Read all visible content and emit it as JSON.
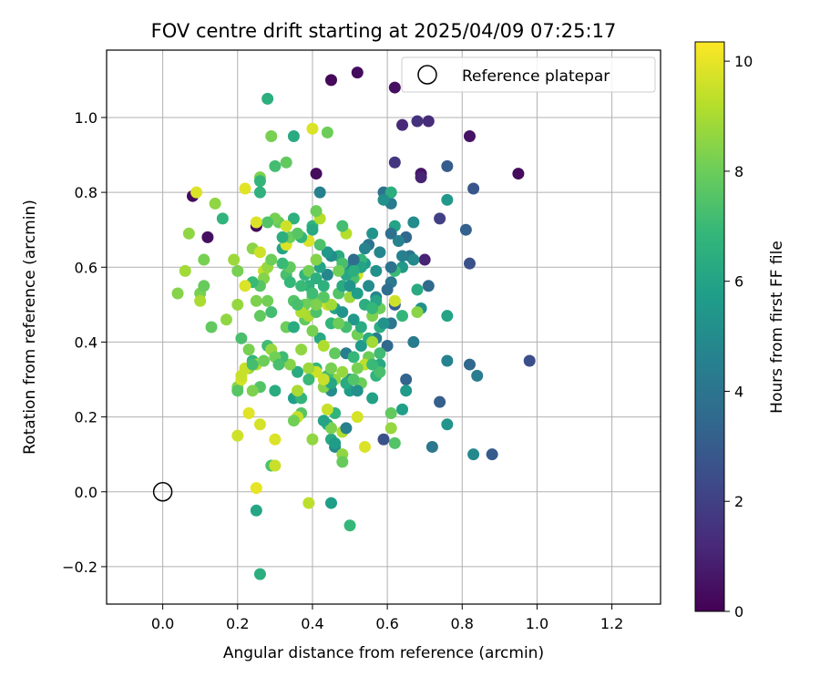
{
  "chart_data": {
    "type": "scatter",
    "title": "FOV centre drift starting at 2025/04/09 07:25:17",
    "xlabel": "Angular distance from reference (arcmin)",
    "ylabel": "Rotation from reference (arcmin)",
    "xlim": [
      -0.15,
      1.33
    ],
    "ylim": [
      -0.3,
      1.18
    ],
    "xticks": [
      0.0,
      0.2,
      0.4,
      0.6,
      0.8,
      1.0,
      1.2
    ],
    "xtick_labels": [
      "0.0",
      "0.2",
      "0.4",
      "0.6",
      "0.8",
      "1.0",
      "1.2"
    ],
    "yticks": [
      -0.2,
      0.0,
      0.2,
      0.4,
      0.6,
      0.8,
      1.0
    ],
    "ytick_labels": [
      "−0.2",
      "0.0",
      "0.2",
      "0.4",
      "0.6",
      "0.8",
      "1.0"
    ],
    "grid": true,
    "legend": {
      "position": "top-right",
      "entries": [
        "Reference platepar"
      ]
    },
    "reference_point": {
      "x": 0.0,
      "y": 0.0,
      "label": "Reference platepar"
    },
    "colorbar": {
      "label": "Hours from first FF file",
      "colormap": "viridis",
      "range": [
        0,
        10.35
      ],
      "ticks": [
        0,
        2,
        4,
        6,
        8,
        10
      ],
      "tick_labels": [
        "0",
        "2",
        "4",
        "6",
        "8",
        "10"
      ]
    },
    "colormap_stops": [
      "#440154",
      "#482878",
      "#3e4989",
      "#31688e",
      "#26828e",
      "#1f9e89",
      "#35b779",
      "#6ece58",
      "#b5de2b",
      "#fde725"
    ],
    "points": [
      [
        0.45,
        1.1,
        0.2
      ],
      [
        0.52,
        1.12,
        0.3
      ],
      [
        0.62,
        1.08,
        0.4
      ],
      [
        0.64,
        0.98,
        1.2
      ],
      [
        0.68,
        0.99,
        1.5
      ],
      [
        0.71,
        0.99,
        1.3
      ],
      [
        0.82,
        0.95,
        0.5
      ],
      [
        0.95,
        0.85,
        0.3
      ],
      [
        0.69,
        0.85,
        0.6
      ],
      [
        0.62,
        0.88,
        1.6
      ],
      [
        0.69,
        0.84,
        1.0
      ],
      [
        0.76,
        0.87,
        3.0
      ],
      [
        0.83,
        0.81,
        2.8
      ],
      [
        0.41,
        0.85,
        0.3
      ],
      [
        0.08,
        0.79,
        0.3
      ],
      [
        0.12,
        0.68,
        0.4
      ],
      [
        0.25,
        0.71,
        0.3
      ],
      [
        0.7,
        0.62,
        1.0
      ],
      [
        0.74,
        0.73,
        2.0
      ],
      [
        0.81,
        0.7,
        3.2
      ],
      [
        0.82,
        0.61,
        2.6
      ],
      [
        0.98,
        0.35,
        2.5
      ],
      [
        0.88,
        0.1,
        3.0
      ],
      [
        0.83,
        0.1,
        4.9
      ],
      [
        0.82,
        0.34,
        3.5
      ],
      [
        0.84,
        0.31,
        4.4
      ],
      [
        0.74,
        0.24,
        3.1
      ],
      [
        0.72,
        0.12,
        4.1
      ],
      [
        0.76,
        0.35,
        4.6
      ],
      [
        0.76,
        0.47,
        6.0
      ],
      [
        0.76,
        0.18,
        5.4
      ],
      [
        0.76,
        0.78,
        5.5
      ],
      [
        0.71,
        0.55,
        3.6
      ],
      [
        0.67,
        0.4,
        4.3
      ],
      [
        0.69,
        0.49,
        5.2
      ],
      [
        0.66,
        0.63,
        4.0
      ],
      [
        0.65,
        0.68,
        3.4
      ],
      [
        0.67,
        0.72,
        5.0
      ],
      [
        0.61,
        0.77,
        4.3
      ],
      [
        0.59,
        0.8,
        3.9
      ],
      [
        0.61,
        0.8,
        6.5
      ],
      [
        0.59,
        0.78,
        5.2
      ],
      [
        0.62,
        0.71,
        6.0
      ],
      [
        0.61,
        0.69,
        3.8
      ],
      [
        0.63,
        0.67,
        4.6
      ],
      [
        0.64,
        0.6,
        5.5
      ],
      [
        0.62,
        0.59,
        7.0
      ],
      [
        0.61,
        0.56,
        4.2
      ],
      [
        0.62,
        0.5,
        3.2
      ],
      [
        0.61,
        0.45,
        4.1
      ],
      [
        0.6,
        0.39,
        3.5
      ],
      [
        0.65,
        0.3,
        3.3
      ],
      [
        0.65,
        0.27,
        5.6
      ],
      [
        0.64,
        0.22,
        5.8
      ],
      [
        0.61,
        0.21,
        7.8
      ],
      [
        0.61,
        0.17,
        8.7
      ],
      [
        0.62,
        0.13,
        7.5
      ],
      [
        0.59,
        0.14,
        2.6
      ],
      [
        0.56,
        0.25,
        5.9
      ],
      [
        0.58,
        0.34,
        6.2
      ],
      [
        0.55,
        0.36,
        8.0
      ],
      [
        0.57,
        0.41,
        4.4
      ],
      [
        0.56,
        0.47,
        8.3
      ],
      [
        0.58,
        0.44,
        6.5
      ],
      [
        0.57,
        0.52,
        4.8
      ],
      [
        0.55,
        0.55,
        5.0
      ],
      [
        0.57,
        0.59,
        5.2
      ],
      [
        0.54,
        0.61,
        5.6
      ],
      [
        0.55,
        0.66,
        4.0
      ],
      [
        0.56,
        0.69,
        5.3
      ],
      [
        0.53,
        0.62,
        6.8
      ],
      [
        0.52,
        0.58,
        9.7
      ],
      [
        0.51,
        0.57,
        7.3
      ],
      [
        0.5,
        0.6,
        4.6
      ],
      [
        0.49,
        0.58,
        6.1
      ],
      [
        0.49,
        0.69,
        9.2
      ],
      [
        0.48,
        0.71,
        7.2
      ],
      [
        0.47,
        0.63,
        6.3
      ],
      [
        0.45,
        0.63,
        5.0
      ],
      [
        0.44,
        0.64,
        5.5
      ],
      [
        0.44,
        0.58,
        4.8
      ],
      [
        0.43,
        0.55,
        6.6
      ],
      [
        0.44,
        0.5,
        9.5
      ],
      [
        0.46,
        0.49,
        6.0
      ],
      [
        0.48,
        0.48,
        5.4
      ],
      [
        0.5,
        0.52,
        8.8
      ],
      [
        0.47,
        0.53,
        7.5
      ],
      [
        0.45,
        0.45,
        6.8
      ],
      [
        0.42,
        0.41,
        6.2
      ],
      [
        0.43,
        0.39,
        9.1
      ],
      [
        0.46,
        0.37,
        7.8
      ],
      [
        0.49,
        0.37,
        4.4
      ],
      [
        0.51,
        0.36,
        6.9
      ],
      [
        0.53,
        0.39,
        5.6
      ],
      [
        0.54,
        0.34,
        9.3
      ],
      [
        0.53,
        0.29,
        8.0
      ],
      [
        0.5,
        0.3,
        5.2
      ],
      [
        0.5,
        0.27,
        5.7
      ],
      [
        0.49,
        0.29,
        6.3
      ],
      [
        0.46,
        0.3,
        8.6
      ],
      [
        0.45,
        0.27,
        5.0
      ],
      [
        0.44,
        0.31,
        7.2
      ],
      [
        0.43,
        0.28,
        8.4
      ],
      [
        0.41,
        0.33,
        6.9
      ],
      [
        0.41,
        0.32,
        9.6
      ],
      [
        0.39,
        0.33,
        8.8
      ],
      [
        0.39,
        0.3,
        7.0
      ],
      [
        0.36,
        0.32,
        6.3
      ],
      [
        0.35,
        0.25,
        5.8
      ],
      [
        0.37,
        0.25,
        6.8
      ],
      [
        0.36,
        0.27,
        9.0
      ],
      [
        0.37,
        0.21,
        7.6
      ],
      [
        0.36,
        0.2,
        9.4
      ],
      [
        0.35,
        0.19,
        8.1
      ],
      [
        0.34,
        0.34,
        8.4
      ],
      [
        0.32,
        0.36,
        7.1
      ],
      [
        0.33,
        0.44,
        8.0
      ],
      [
        0.35,
        0.44,
        6.4
      ],
      [
        0.37,
        0.38,
        8.6
      ],
      [
        0.38,
        0.46,
        7.8
      ],
      [
        0.39,
        0.47,
        9.0
      ],
      [
        0.4,
        0.43,
        8.2
      ],
      [
        0.41,
        0.48,
        7.4
      ],
      [
        0.4,
        0.52,
        7.9
      ],
      [
        0.39,
        0.55,
        6.6
      ],
      [
        0.37,
        0.55,
        7.0
      ],
      [
        0.35,
        0.51,
        7.5
      ],
      [
        0.33,
        0.58,
        7.3
      ],
      [
        0.34,
        0.56,
        6.9
      ],
      [
        0.34,
        0.6,
        7.8
      ],
      [
        0.32,
        0.61,
        7.0
      ],
      [
        0.32,
        0.65,
        6.0
      ],
      [
        0.33,
        0.66,
        9.8
      ],
      [
        0.34,
        0.68,
        8.0
      ],
      [
        0.32,
        0.68,
        6.5
      ],
      [
        0.31,
        0.72,
        7.9
      ],
      [
        0.3,
        0.73,
        8.2
      ],
      [
        0.28,
        0.72,
        7.5
      ],
      [
        0.25,
        0.72,
        9.8
      ],
      [
        0.24,
        0.65,
        8.5
      ],
      [
        0.26,
        0.64,
        9.6
      ],
      [
        0.27,
        0.59,
        9.4
      ],
      [
        0.28,
        0.6,
        8.7
      ],
      [
        0.29,
        0.62,
        8.0
      ],
      [
        0.27,
        0.57,
        8.4
      ],
      [
        0.26,
        0.55,
        7.6
      ],
      [
        0.28,
        0.51,
        8.1
      ],
      [
        0.29,
        0.48,
        7.2
      ],
      [
        0.26,
        0.47,
        7.8
      ],
      [
        0.25,
        0.51,
        8.3
      ],
      [
        0.24,
        0.56,
        7.0
      ],
      [
        0.22,
        0.55,
        9.8
      ],
      [
        0.2,
        0.59,
        8.2
      ],
      [
        0.19,
        0.62,
        8.8
      ],
      [
        0.17,
        0.46,
        8.6
      ],
      [
        0.2,
        0.5,
        8.7
      ],
      [
        0.21,
        0.41,
        7.3
      ],
      [
        0.23,
        0.38,
        8.2
      ],
      [
        0.24,
        0.35,
        6.8
      ],
      [
        0.23,
        0.33,
        8.9
      ],
      [
        0.25,
        0.34,
        9.2
      ],
      [
        0.26,
        0.28,
        7.5
      ],
      [
        0.24,
        0.27,
        8.3
      ],
      [
        0.2,
        0.28,
        8.5
      ],
      [
        0.21,
        0.3,
        9.7
      ],
      [
        0.21,
        0.31,
        9.5
      ],
      [
        0.2,
        0.15,
        9.6
      ],
      [
        0.23,
        0.21,
        9.9
      ],
      [
        0.26,
        0.18,
        9.7
      ],
      [
        0.27,
        0.35,
        8.0
      ],
      [
        0.28,
        0.39,
        7.1
      ],
      [
        0.29,
        0.38,
        8.7
      ],
      [
        0.3,
        0.36,
        8.1
      ],
      [
        0.31,
        0.34,
        7.3
      ],
      [
        0.3,
        0.27,
        6.4
      ],
      [
        0.29,
        0.07,
        7.4
      ],
      [
        0.3,
        0.07,
        9.5
      ],
      [
        0.3,
        0.14,
        9.8
      ],
      [
        0.25,
        0.01,
        10.0
      ],
      [
        0.25,
        -0.05,
        6.1
      ],
      [
        0.26,
        -0.22,
        6.5
      ],
      [
        0.39,
        -0.03,
        9.3
      ],
      [
        0.45,
        -0.03,
        5.8
      ],
      [
        0.5,
        -0.09,
        6.9
      ],
      [
        0.4,
        0.14,
        8.6
      ],
      [
        0.45,
        0.14,
        6.2
      ],
      [
        0.46,
        0.12,
        4.9
      ],
      [
        0.48,
        0.1,
        8.6
      ],
      [
        0.48,
        0.08,
        7.9
      ],
      [
        0.46,
        0.13,
        5.7
      ],
      [
        0.44,
        0.18,
        6.4
      ],
      [
        0.46,
        0.21,
        6.7
      ],
      [
        0.48,
        0.16,
        9.1
      ],
      [
        0.49,
        0.17,
        4.5
      ],
      [
        0.45,
        0.17,
        8.3
      ],
      [
        0.44,
        0.22,
        9.5
      ],
      [
        0.43,
        0.19,
        6.0
      ],
      [
        0.52,
        0.2,
        9.7
      ],
      [
        0.54,
        0.12,
        9.8
      ],
      [
        0.57,
        0.31,
        6.7
      ],
      [
        0.58,
        0.32,
        7.3
      ],
      [
        0.56,
        0.34,
        7.0
      ],
      [
        0.52,
        0.27,
        5.2
      ],
      [
        0.51,
        0.3,
        7.5
      ],
      [
        0.52,
        0.33,
        8.2
      ],
      [
        0.52,
        0.42,
        8.1
      ],
      [
        0.55,
        0.41,
        6.4
      ],
      [
        0.56,
        0.4,
        8.9
      ],
      [
        0.58,
        0.37,
        7.1
      ],
      [
        0.59,
        0.45,
        5.3
      ],
      [
        0.58,
        0.49,
        8.0
      ],
      [
        0.57,
        0.51,
        6.1
      ],
      [
        0.6,
        0.54,
        3.7
      ],
      [
        0.62,
        0.51,
        9.6
      ],
      [
        0.64,
        0.47,
        6.8
      ],
      [
        0.68,
        0.48,
        8.5
      ],
      [
        0.68,
        0.54,
        6.3
      ],
      [
        0.67,
        0.62,
        4.9
      ],
      [
        0.64,
        0.63,
        4.5
      ],
      [
        0.61,
        0.6,
        4.0
      ],
      [
        0.58,
        0.64,
        4.8
      ],
      [
        0.54,
        0.65,
        4.7
      ],
      [
        0.53,
        0.6,
        6.0
      ],
      [
        0.51,
        0.62,
        3.7
      ],
      [
        0.51,
        0.59,
        6.5
      ],
      [
        0.48,
        0.61,
        7.3
      ],
      [
        0.47,
        0.59,
        8.1
      ],
      [
        0.48,
        0.55,
        6.3
      ],
      [
        0.5,
        0.55,
        5.3
      ],
      [
        0.52,
        0.53,
        5.8
      ],
      [
        0.54,
        0.5,
        6.5
      ],
      [
        0.56,
        0.49,
        6.9
      ],
      [
        0.53,
        0.44,
        6.4
      ],
      [
        0.51,
        0.46,
        5.5
      ],
      [
        0.49,
        0.44,
        7.2
      ],
      [
        0.47,
        0.45,
        8.0
      ],
      [
        0.45,
        0.5,
        8.9
      ],
      [
        0.43,
        0.52,
        7.6
      ],
      [
        0.41,
        0.5,
        8.3
      ],
      [
        0.4,
        0.53,
        7.1
      ],
      [
        0.38,
        0.5,
        8.0
      ],
      [
        0.37,
        0.48,
        9.1
      ],
      [
        0.36,
        0.5,
        7.3
      ],
      [
        0.38,
        0.58,
        6.8
      ],
      [
        0.39,
        0.59,
        8.1
      ],
      [
        0.41,
        0.57,
        6.5
      ],
      [
        0.42,
        0.6,
        6.0
      ],
      [
        0.41,
        0.62,
        8.4
      ],
      [
        0.39,
        0.67,
        9.8
      ],
      [
        0.42,
        0.66,
        7.4
      ],
      [
        0.4,
        0.71,
        6.7
      ],
      [
        0.42,
        0.73,
        9.2
      ],
      [
        0.41,
        0.75,
        8.0
      ],
      [
        0.4,
        0.7,
        6.2
      ],
      [
        0.37,
        0.68,
        6.8
      ],
      [
        0.36,
        0.69,
        7.6
      ],
      [
        0.35,
        0.73,
        6.6
      ],
      [
        0.33,
        0.71,
        9.6
      ],
      [
        0.29,
        0.95,
        8.2
      ],
      [
        0.35,
        0.95,
        6.3
      ],
      [
        0.4,
        0.97,
        9.8
      ],
      [
        0.44,
        0.96,
        8.0
      ],
      [
        0.28,
        1.05,
        6.5
      ],
      [
        0.33,
        0.88,
        7.8
      ],
      [
        0.3,
        0.87,
        7.2
      ],
      [
        0.26,
        0.84,
        8.3
      ],
      [
        0.26,
        0.83,
        6.8
      ],
      [
        0.22,
        0.81,
        9.9
      ],
      [
        0.26,
        0.8,
        6.6
      ],
      [
        0.42,
        0.8,
        4.5
      ],
      [
        0.14,
        0.77,
        8.6
      ],
      [
        0.16,
        0.73,
        6.7
      ],
      [
        0.09,
        0.8,
        9.8
      ],
      [
        0.07,
        0.69,
        8.6
      ],
      [
        0.11,
        0.62,
        8.2
      ],
      [
        0.06,
        0.59,
        8.9
      ],
      [
        0.04,
        0.53,
        8.4
      ],
      [
        0.1,
        0.53,
        8.2
      ],
      [
        0.11,
        0.55,
        7.9
      ],
      [
        0.1,
        0.51,
        9.0
      ],
      [
        0.13,
        0.44,
        7.8
      ],
      [
        0.2,
        0.27,
        7.6
      ],
      [
        0.22,
        0.33,
        9.5
      ],
      [
        0.24,
        0.34,
        7.2
      ],
      [
        0.45,
        0.33,
        8.2
      ],
      [
        0.45,
        0.29,
        6.1
      ],
      [
        0.43,
        0.3,
        9.5
      ],
      [
        0.48,
        0.32,
        8.7
      ]
    ]
  }
}
